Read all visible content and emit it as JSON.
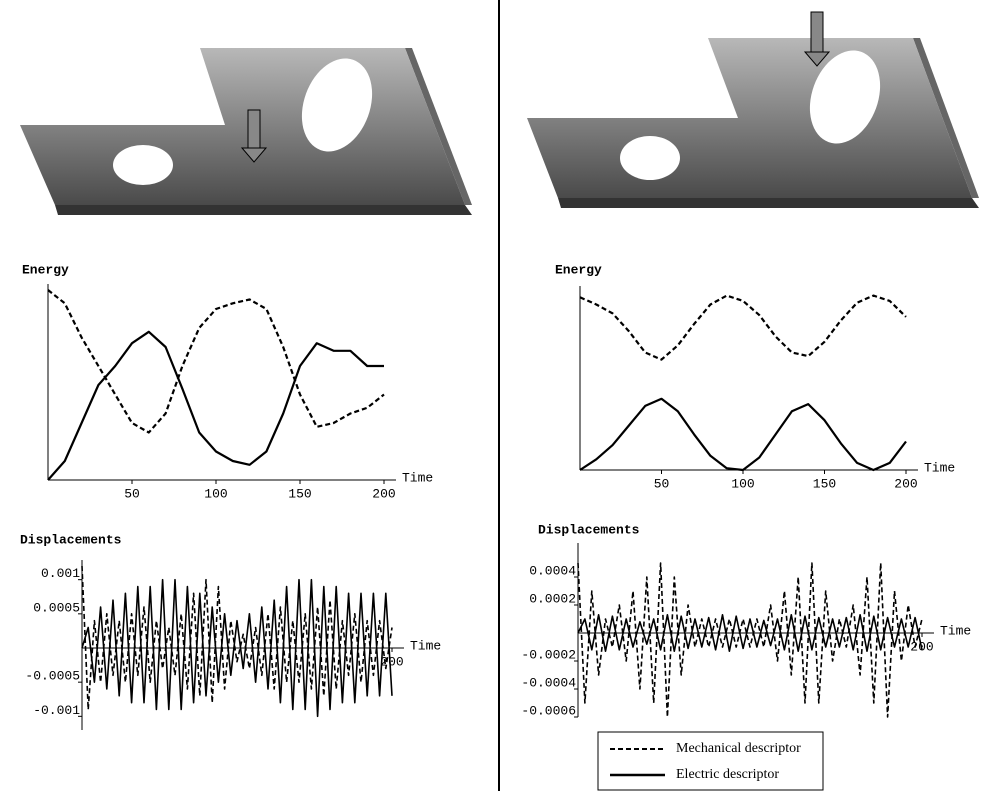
{
  "chart_data": [
    {
      "type": "line",
      "title": "Energy",
      "x_label": "Time",
      "x": [
        0,
        10,
        20,
        30,
        40,
        50,
        60,
        70,
        80,
        90,
        100,
        110,
        120,
        130,
        140,
        150,
        160,
        170,
        180,
        190,
        200
      ],
      "xlim": [
        0,
        200
      ],
      "xticks": [
        50,
        100,
        150,
        200
      ],
      "ylim": [
        0,
        1
      ],
      "series": [
        {
          "color": "#000000",
          "dash": true,
          "values": [
            1.0,
            0.93,
            0.75,
            0.6,
            0.45,
            0.3,
            0.25,
            0.35,
            0.6,
            0.8,
            0.9,
            0.93,
            0.95,
            0.9,
            0.7,
            0.45,
            0.28,
            0.3,
            0.35,
            0.38,
            0.45
          ]
        },
        {
          "color": "#000000",
          "dash": false,
          "values": [
            0,
            0.1,
            0.3,
            0.5,
            0.6,
            0.72,
            0.78,
            0.7,
            0.48,
            0.25,
            0.15,
            0.1,
            0.08,
            0.15,
            0.35,
            0.6,
            0.72,
            0.68,
            0.68,
            0.6,
            0.6
          ]
        }
      ]
    },
    {
      "type": "line",
      "title": "Energy",
      "x_label": "Time",
      "x": [
        0,
        10,
        20,
        30,
        40,
        50,
        60,
        70,
        80,
        90,
        100,
        110,
        120,
        130,
        140,
        150,
        160,
        170,
        180,
        190,
        200
      ],
      "xlim": [
        0,
        200
      ],
      "xticks": [
        50,
        100,
        150,
        200
      ],
      "ylim": [
        0,
        1
      ],
      "series": [
        {
          "color": "#000000",
          "dash": true,
          "values": [
            0.97,
            0.93,
            0.88,
            0.78,
            0.66,
            0.62,
            0.7,
            0.82,
            0.93,
            0.98,
            0.95,
            0.87,
            0.75,
            0.66,
            0.64,
            0.72,
            0.84,
            0.94,
            0.98,
            0.95,
            0.86
          ]
        },
        {
          "color": "#000000",
          "dash": false,
          "values": [
            0,
            0.06,
            0.14,
            0.25,
            0.36,
            0.4,
            0.33,
            0.2,
            0.08,
            0.01,
            0.0,
            0.07,
            0.2,
            0.33,
            0.37,
            0.28,
            0.15,
            0.04,
            0.0,
            0.04,
            0.16
          ]
        }
      ]
    },
    {
      "type": "line",
      "title": "Displacements",
      "x_label": "Time",
      "x": [
        0,
        4,
        8,
        12,
        16,
        20,
        24,
        28,
        32,
        36,
        40,
        44,
        48,
        52,
        56,
        60,
        64,
        68,
        72,
        76,
        80,
        84,
        88,
        92,
        96,
        100,
        104,
        108,
        112,
        116,
        120,
        124,
        128,
        132,
        136,
        140,
        144,
        148,
        152,
        156,
        160,
        164,
        168,
        172,
        176,
        180,
        184,
        188,
        192,
        196,
        200
      ],
      "xlim": [
        0,
        200
      ],
      "xticks": [
        200
      ],
      "ylim": [
        -0.0012,
        0.0012
      ],
      "yticks": [
        -0.001,
        -0.0005,
        0.0005,
        0.001
      ],
      "series": [
        {
          "color": "#000000",
          "dash": true,
          "values": [
            0.0012,
            -0.0009,
            0.0004,
            -0.0005,
            0.0005,
            -0.0004,
            0.0004,
            -0.0005,
            0.0005,
            -0.0004,
            0.0006,
            -0.0005,
            0.0004,
            -0.0003,
            0.0003,
            -0.0004,
            0.0005,
            -0.0006,
            0.0008,
            -0.0007,
            0.001,
            -0.0008,
            0.0009,
            -0.0006,
            0.0004,
            -0.0002,
            0.0002,
            -0.0003,
            0.0003,
            -0.0004,
            0.0005,
            -0.0006,
            0.0006,
            -0.0005,
            0.0004,
            -0.0005,
            0.0005,
            -0.0006,
            0.0006,
            -0.0007,
            0.0007,
            -0.0006,
            0.0004,
            -0.0004,
            0.0005,
            -0.0005,
            0.0004,
            -0.0004,
            0.0004,
            -0.0003,
            0.0003
          ]
        },
        {
          "color": "#000000",
          "dash": false,
          "values": [
            0,
            0.0003,
            -0.0005,
            0.0006,
            -0.0006,
            0.0007,
            -0.0007,
            0.0008,
            -0.0008,
            0.0009,
            -0.0008,
            0.0009,
            -0.0009,
            0.001,
            -0.0009,
            0.001,
            -0.0009,
            0.0009,
            -0.0008,
            0.0008,
            -0.0007,
            0.0006,
            -0.0005,
            0.0005,
            -0.0004,
            0.0004,
            -0.0003,
            0.0005,
            -0.0005,
            0.0006,
            -0.0006,
            0.0007,
            -0.0008,
            0.0009,
            -0.0009,
            0.001,
            -0.0009,
            0.001,
            -0.001,
            0.0009,
            -0.0009,
            0.0009,
            -0.0008,
            0.0008,
            -0.0008,
            0.0008,
            -0.0007,
            0.0008,
            -0.0007,
            0.0008,
            -0.0007
          ]
        }
      ]
    },
    {
      "type": "line",
      "title": "Displacements",
      "x_label": "Time",
      "x": [
        0,
        4,
        8,
        12,
        16,
        20,
        24,
        28,
        32,
        36,
        40,
        44,
        48,
        52,
        56,
        60,
        64,
        68,
        72,
        76,
        80,
        84,
        88,
        92,
        96,
        100,
        104,
        108,
        112,
        116,
        120,
        124,
        128,
        132,
        136,
        140,
        144,
        148,
        152,
        156,
        160,
        164,
        168,
        172,
        176,
        180,
        184,
        188,
        192,
        196,
        200
      ],
      "xlim": [
        0,
        200
      ],
      "xticks": [
        200
      ],
      "ylim": [
        -0.0006,
        0.0006
      ],
      "yticks": [
        0.0004,
        0.0002,
        -0.0002,
        -0.0004,
        -0.0006
      ],
      "series": [
        {
          "name": "Mechanical descriptor",
          "color": "#000000",
          "dash": true,
          "values": [
            0.0005,
            -0.0005,
            0.0003,
            -0.0003,
            0.0001,
            -0.0001,
            0.0002,
            -0.0002,
            0.0003,
            -0.0004,
            0.0004,
            -0.0005,
            0.0005,
            -0.0006,
            0.0004,
            -0.0003,
            0.0002,
            -0.0001,
            0.0001,
            -0.0001,
            0.0001,
            -0.0001,
            0.0001,
            -0.0001,
            0.0001,
            -0.0001,
            0.0001,
            -0.0001,
            0.0002,
            -0.0002,
            0.0003,
            -0.0003,
            0.0004,
            -0.0005,
            0.0005,
            -0.0005,
            0.0003,
            -0.0002,
            0.0001,
            -0.0001,
            0.0002,
            -0.0003,
            0.0004,
            -0.0005,
            0.0005,
            -0.0006,
            0.0003,
            -0.0002,
            0.0002,
            -0.0001,
            0.0001
          ]
        },
        {
          "name": "Electric descriptor",
          "color": "#000000",
          "dash": false,
          "values": [
            0,
            0.0001,
            -0.00012,
            0.00013,
            -0.00013,
            0.00012,
            -0.00012,
            0.0001,
            -0.0001,
            8e-05,
            -8e-05,
            0.0001,
            -0.00012,
            0.00013,
            -0.00013,
            0.00012,
            -0.00011,
            0.0001,
            -0.0001,
            0.00011,
            -0.00012,
            0.00013,
            -0.00013,
            0.00012,
            -0.00011,
            0.0001,
            -0.0001,
            9e-05,
            -9e-05,
            0.0001,
            -0.00012,
            0.00013,
            -0.00013,
            0.00012,
            -0.00012,
            0.00011,
            -0.0001,
            0.0001,
            -0.0001,
            0.00011,
            -0.00012,
            0.00013,
            -0.00013,
            0.00012,
            -0.00012,
            0.00011,
            -0.0001,
            0.0001,
            -0.0001,
            0.00011,
            -0.00012
          ]
        }
      ]
    }
  ]
}
